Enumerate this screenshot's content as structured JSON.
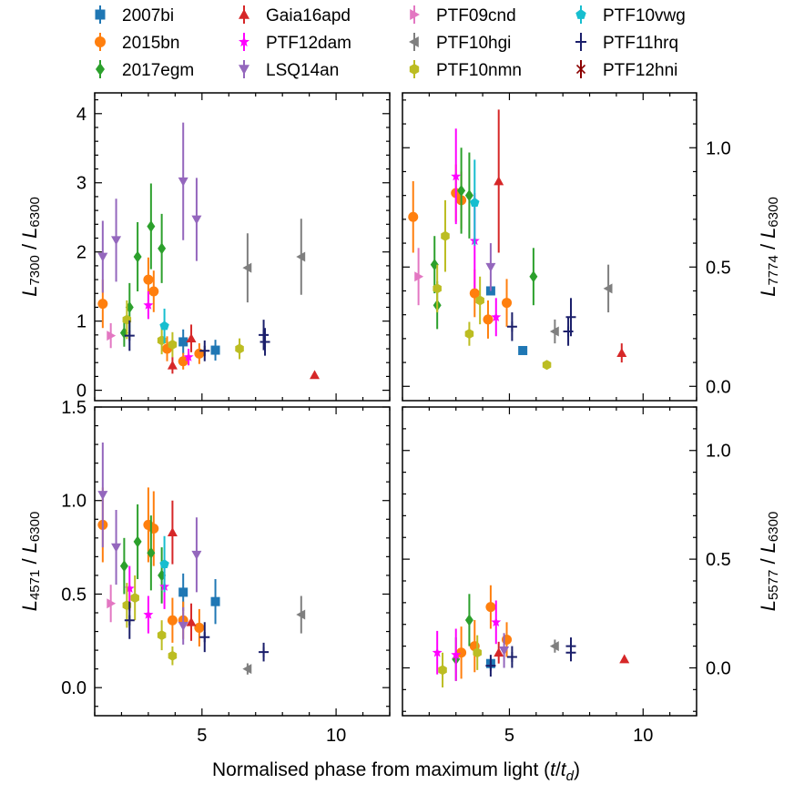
{
  "chart_data": {
    "type": "scatter",
    "xlabel": "Normalised phase from maximum light (t/t_d)",
    "xlabel_parts": {
      "prefix": "Normalised phase from maximum light (",
      "t": "t",
      "slash": "/",
      "td": "t",
      "td_sub": "d",
      "suffix": ")"
    },
    "xlim": [
      1,
      12
    ],
    "xticks": [
      5,
      10
    ],
    "legend": [
      {
        "name": "2007bi",
        "color": "#1f77b4",
        "marker": "square"
      },
      {
        "name": "2015bn",
        "color": "#ff7f0e",
        "marker": "circle"
      },
      {
        "name": "2017egm",
        "color": "#2ca02c",
        "marker": "diamond"
      },
      {
        "name": "Gaia16apd",
        "color": "#d62728",
        "marker": "triangle-up"
      },
      {
        "name": "PTF12dam",
        "color": "#ff00ff",
        "marker": "star"
      },
      {
        "name": "LSQ14an",
        "color": "#9467bd",
        "marker": "triangle-down"
      },
      {
        "name": "PTF09cnd",
        "color": "#e377c2",
        "marker": "triangle-right"
      },
      {
        "name": "PTF10hgi",
        "color": "#7f7f7f",
        "marker": "triangle-left"
      },
      {
        "name": "PTF10nmn",
        "color": "#bcbd22",
        "marker": "hexagon"
      },
      {
        "name": "PTF10vwg",
        "color": "#17becf",
        "marker": "pentagon"
      },
      {
        "name": "PTF11hrq",
        "color": "#1b1f6b",
        "marker": "plus"
      },
      {
        "name": "PTF12hni",
        "color": "#8b0000",
        "marker": "x"
      }
    ],
    "panels": [
      {
        "id": "top-left",
        "ylabel": {
          "main": "L",
          "sub": "7300",
          "den": "L",
          "den_sub": "6300"
        },
        "ylabel_side": "left",
        "ylim": [
          -0.15,
          4.3
        ],
        "yticks": [
          0,
          1,
          2,
          3,
          4
        ],
        "show_xticklabels": false,
        "points": [
          {
            "s": "2007bi",
            "x": 4.3,
            "y": 0.7,
            "err": 0.18
          },
          {
            "s": "2007bi",
            "x": 5.5,
            "y": 0.58,
            "err": 0.15
          },
          {
            "s": "2015bn",
            "x": 1.3,
            "y": 1.25,
            "err": 0.35
          },
          {
            "s": "2015bn",
            "x": 3.0,
            "y": 1.6,
            "err": 0.32
          },
          {
            "s": "2015bn",
            "x": 3.2,
            "y": 1.43,
            "err": 0.3
          },
          {
            "s": "2015bn",
            "x": 3.7,
            "y": 0.6,
            "err": 0.18
          },
          {
            "s": "2015bn",
            "x": 4.3,
            "y": 0.42,
            "err": 0.12
          },
          {
            "s": "2015bn",
            "x": 4.9,
            "y": 0.53,
            "err": 0.15
          },
          {
            "s": "2017egm",
            "x": 2.1,
            "y": 0.83,
            "err": 0.2
          },
          {
            "s": "2017egm",
            "x": 2.3,
            "y": 1.2,
            "err": 0.35
          },
          {
            "s": "2017egm",
            "x": 2.6,
            "y": 1.93,
            "err": 0.5
          },
          {
            "s": "2017egm",
            "x": 3.1,
            "y": 2.37,
            "err": 0.62
          },
          {
            "s": "2017egm",
            "x": 3.5,
            "y": 2.05,
            "err": 0.5
          },
          {
            "s": "Gaia16apd",
            "x": 3.9,
            "y": 0.36,
            "err": 0.12
          },
          {
            "s": "Gaia16apd",
            "x": 4.6,
            "y": 0.75,
            "err": 0.2
          },
          {
            "s": "Gaia16apd",
            "x": 9.2,
            "y": 0.22,
            "err": 0.0
          },
          {
            "s": "PTF12dam",
            "x": 3.0,
            "y": 1.23,
            "err": 0.2
          },
          {
            "s": "PTF12dam",
            "x": 4.5,
            "y": 0.48,
            "err": 0.12
          },
          {
            "s": "LSQ14an",
            "x": 1.3,
            "y": 1.93,
            "err": 0.52
          },
          {
            "s": "LSQ14an",
            "x": 1.8,
            "y": 2.17,
            "err": 0.6
          },
          {
            "s": "LSQ14an",
            "x": 4.3,
            "y": 3.02,
            "err": 0.85
          },
          {
            "s": "LSQ14an",
            "x": 4.8,
            "y": 2.47,
            "err": 0.6
          },
          {
            "s": "PTF09cnd",
            "x": 1.6,
            "y": 0.79,
            "err": 0.18
          },
          {
            "s": "PTF10hgi",
            "x": 6.7,
            "y": 1.77,
            "err": 0.5
          },
          {
            "s": "PTF10hgi",
            "x": 8.7,
            "y": 1.93,
            "err": 0.55
          },
          {
            "s": "PTF10nmn",
            "x": 2.2,
            "y": 1.02,
            "err": 0.28
          },
          {
            "s": "PTF10nmn",
            "x": 3.5,
            "y": 0.72,
            "err": 0.2
          },
          {
            "s": "PTF10nmn",
            "x": 3.9,
            "y": 0.66,
            "err": 0.18
          },
          {
            "s": "PTF10nmn",
            "x": 6.4,
            "y": 0.6,
            "err": 0.15
          },
          {
            "s": "PTF10vwg",
            "x": 3.6,
            "y": 0.93,
            "err": 0.25
          },
          {
            "s": "PTF11hrq",
            "x": 2.3,
            "y": 0.79,
            "err": 0.22
          },
          {
            "s": "PTF11hrq",
            "x": 5.1,
            "y": 0.57,
            "err": 0.15
          },
          {
            "s": "PTF11hrq",
            "x": 7.3,
            "y": 0.8,
            "err": 0.22
          },
          {
            "s": "PTF11hrq",
            "x": 7.35,
            "y": 0.7,
            "err": 0.2
          }
        ]
      },
      {
        "id": "top-right",
        "ylabel": {
          "main": "L",
          "sub": "7774",
          "den": "L",
          "den_sub": "6300"
        },
        "ylabel_side": "right",
        "ylim": [
          -0.06,
          1.23
        ],
        "yticks": [
          0.0,
          0.5,
          1.0
        ],
        "ytick_labels": [
          "0.0",
          "0.5",
          "1.0"
        ],
        "show_xticklabels": false,
        "points": [
          {
            "s": "2007bi",
            "x": 4.3,
            "y": 0.4,
            "err": 0.0
          },
          {
            "s": "2007bi",
            "x": 5.5,
            "y": 0.15,
            "err": 0.0
          },
          {
            "s": "2015bn",
            "x": 1.4,
            "y": 0.71,
            "err": 0.15
          },
          {
            "s": "2015bn",
            "x": 3.0,
            "y": 0.81,
            "err": 0.12
          },
          {
            "s": "2015bn",
            "x": 3.2,
            "y": 0.78,
            "err": 0.12
          },
          {
            "s": "2015bn",
            "x": 3.7,
            "y": 0.39,
            "err": 0.1
          },
          {
            "s": "2015bn",
            "x": 4.2,
            "y": 0.28,
            "err": 0.08
          },
          {
            "s": "2015bn",
            "x": 4.9,
            "y": 0.35,
            "err": 0.1
          },
          {
            "s": "2017egm",
            "x": 2.2,
            "y": 0.51,
            "err": 0.12
          },
          {
            "s": "2017egm",
            "x": 2.3,
            "y": 0.34,
            "err": 0.1
          },
          {
            "s": "2017egm",
            "x": 3.2,
            "y": 0.82,
            "err": 0.18
          },
          {
            "s": "2017egm",
            "x": 3.5,
            "y": 0.8,
            "err": 0.18
          },
          {
            "s": "2017egm",
            "x": 5.9,
            "y": 0.46,
            "err": 0.12
          },
          {
            "s": "Gaia16apd",
            "x": 4.6,
            "y": 0.86,
            "err": 0.3
          },
          {
            "s": "Gaia16apd",
            "x": 9.2,
            "y": 0.14,
            "err": 0.04
          },
          {
            "s": "PTF12dam",
            "x": 3.0,
            "y": 0.88,
            "err": 0.2
          },
          {
            "s": "PTF12dam",
            "x": 3.7,
            "y": 0.61,
            "err": 0.2
          },
          {
            "s": "PTF12dam",
            "x": 4.5,
            "y": 0.29,
            "err": 0.08
          },
          {
            "s": "LSQ14an",
            "x": 4.3,
            "y": 0.5,
            "err": 0.1
          },
          {
            "s": "PTF09cnd",
            "x": 1.6,
            "y": 0.46,
            "err": 0.12
          },
          {
            "s": "PTF10hgi",
            "x": 6.7,
            "y": 0.23,
            "err": 0.05
          },
          {
            "s": "PTF10hgi",
            "x": 8.7,
            "y": 0.41,
            "err": 0.1
          },
          {
            "s": "PTF10nmn",
            "x": 2.3,
            "y": 0.41,
            "err": 0.1
          },
          {
            "s": "PTF10nmn",
            "x": 2.6,
            "y": 0.63,
            "err": 0.15
          },
          {
            "s": "PTF10nmn",
            "x": 3.5,
            "y": 0.22,
            "err": 0.05
          },
          {
            "s": "PTF10nmn",
            "x": 3.9,
            "y": 0.36,
            "err": 0.1
          },
          {
            "s": "PTF10nmn",
            "x": 6.4,
            "y": 0.09,
            "err": 0.0
          },
          {
            "s": "PTF10vwg",
            "x": 3.7,
            "y": 0.77,
            "err": 0.18
          },
          {
            "s": "PTF11hrq",
            "x": 5.1,
            "y": 0.25,
            "err": 0.06
          },
          {
            "s": "PTF11hrq",
            "x": 7.2,
            "y": 0.23,
            "err": 0.06
          },
          {
            "s": "PTF11hrq",
            "x": 7.3,
            "y": 0.29,
            "err": 0.08
          }
        ]
      },
      {
        "id": "bottom-left",
        "ylabel": {
          "main": "L",
          "sub": "4571",
          "den": "L",
          "den_sub": "6300"
        },
        "ylabel_side": "left",
        "ylim": [
          -0.15,
          1.5
        ],
        "yticks": [
          0.0,
          0.5,
          1.0,
          1.5
        ],
        "ytick_labels": [
          "0.0",
          "0.5",
          "1.0",
          "1.5"
        ],
        "show_xticklabels": true,
        "points": [
          {
            "s": "2007bi",
            "x": 4.3,
            "y": 0.51,
            "err": 0.1
          },
          {
            "s": "2007bi",
            "x": 5.5,
            "y": 0.46,
            "err": 0.12
          },
          {
            "s": "2015bn",
            "x": 1.3,
            "y": 0.87,
            "err": 0.2
          },
          {
            "s": "2015bn",
            "x": 3.0,
            "y": 0.87,
            "err": 0.2
          },
          {
            "s": "2015bn",
            "x": 3.2,
            "y": 0.85,
            "err": 0.2
          },
          {
            "s": "2015bn",
            "x": 3.9,
            "y": 0.36,
            "err": 0.12
          },
          {
            "s": "2015bn",
            "x": 4.3,
            "y": 0.36,
            "err": 0.1
          },
          {
            "s": "2015bn",
            "x": 4.9,
            "y": 0.32,
            "err": 0.1
          },
          {
            "s": "2017egm",
            "x": 2.1,
            "y": 0.65,
            "err": 0.15
          },
          {
            "s": "2017egm",
            "x": 2.6,
            "y": 0.78,
            "err": 0.2
          },
          {
            "s": "2017egm",
            "x": 3.1,
            "y": 0.72,
            "err": 0.2
          },
          {
            "s": "2017egm",
            "x": 3.5,
            "y": 0.6,
            "err": 0.15
          },
          {
            "s": "Gaia16apd",
            "x": 3.9,
            "y": 0.83,
            "err": 0.17
          },
          {
            "s": "Gaia16apd",
            "x": 4.6,
            "y": 0.35,
            "err": 0.1
          },
          {
            "s": "PTF12dam",
            "x": 2.3,
            "y": 0.53,
            "err": 0.12
          },
          {
            "s": "PTF12dam",
            "x": 3.0,
            "y": 0.39,
            "err": 0.1
          },
          {
            "s": "PTF12dam",
            "x": 3.6,
            "y": 0.54,
            "err": 0.12
          },
          {
            "s": "LSQ14an",
            "x": 1.3,
            "y": 1.03,
            "err": 0.28
          },
          {
            "s": "LSQ14an",
            "x": 1.8,
            "y": 0.75,
            "err": 0.2
          },
          {
            "s": "LSQ14an",
            "x": 4.3,
            "y": 0.33,
            "err": 0.1
          },
          {
            "s": "LSQ14an",
            "x": 4.8,
            "y": 0.71,
            "err": 0.2
          },
          {
            "s": "PTF09cnd",
            "x": 1.6,
            "y": 0.45,
            "err": 0.1
          },
          {
            "s": "PTF10hgi",
            "x": 6.7,
            "y": 0.1,
            "err": 0.03
          },
          {
            "s": "PTF10hgi",
            "x": 8.7,
            "y": 0.39,
            "err": 0.1
          },
          {
            "s": "PTF10nmn",
            "x": 2.2,
            "y": 0.44,
            "err": 0.12
          },
          {
            "s": "PTF10nmn",
            "x": 2.5,
            "y": 0.48,
            "err": 0.12
          },
          {
            "s": "PTF10nmn",
            "x": 3.5,
            "y": 0.28,
            "err": 0.08
          },
          {
            "s": "PTF10nmn",
            "x": 3.9,
            "y": 0.17,
            "err": 0.05
          },
          {
            "s": "PTF10vwg",
            "x": 3.6,
            "y": 0.66,
            "err": 0.15
          },
          {
            "s": "PTF11hrq",
            "x": 2.3,
            "y": 0.36,
            "err": 0.1
          },
          {
            "s": "PTF11hrq",
            "x": 5.1,
            "y": 0.27,
            "err": 0.08
          },
          {
            "s": "PTF11hrq",
            "x": 7.3,
            "y": 0.19,
            "err": 0.05
          }
        ]
      },
      {
        "id": "bottom-right",
        "ylabel": {
          "main": "L",
          "sub": "5577",
          "den": "L",
          "den_sub": "6300"
        },
        "ylabel_side": "right",
        "ylim": [
          -0.22,
          1.2
        ],
        "yticks": [
          0.0,
          0.5,
          1.0
        ],
        "ytick_labels": [
          "0.0",
          "0.5",
          "1.0"
        ],
        "show_xticklabels": true,
        "points": [
          {
            "s": "2007bi",
            "x": 4.3,
            "y": 0.02,
            "err": 0.0
          },
          {
            "s": "2015bn",
            "x": 3.2,
            "y": 0.07,
            "err": 0.12
          },
          {
            "s": "2015bn",
            "x": 3.7,
            "y": 0.1,
            "err": 0.12
          },
          {
            "s": "2015bn",
            "x": 4.3,
            "y": 0.28,
            "err": 0.1
          },
          {
            "s": "2015bn",
            "x": 4.9,
            "y": 0.13,
            "err": 0.08
          },
          {
            "s": "2017egm",
            "x": 3.0,
            "y": 0.04,
            "err": 0.1
          },
          {
            "s": "2017egm",
            "x": 3.5,
            "y": 0.22,
            "err": 0.12
          },
          {
            "s": "Gaia16apd",
            "x": 4.6,
            "y": 0.07,
            "err": 0.05
          },
          {
            "s": "Gaia16apd",
            "x": 9.3,
            "y": 0.04,
            "err": 0.0
          },
          {
            "s": "PTF12dam",
            "x": 2.3,
            "y": 0.07,
            "err": 0.1
          },
          {
            "s": "PTF12dam",
            "x": 3.0,
            "y": 0.06,
            "err": 0.12
          },
          {
            "s": "PTF12dam",
            "x": 4.5,
            "y": 0.21,
            "err": 0.1
          },
          {
            "s": "LSQ14an",
            "x": 4.8,
            "y": 0.08,
            "err": 0.08
          },
          {
            "s": "PTF10hgi",
            "x": 6.7,
            "y": 0.1,
            "err": 0.03
          },
          {
            "s": "PTF10nmn",
            "x": 2.5,
            "y": -0.01,
            "err": 0.08
          },
          {
            "s": "PTF10nmn",
            "x": 3.8,
            "y": 0.07,
            "err": 0.08
          },
          {
            "s": "PTF11hrq",
            "x": 4.3,
            "y": 0.01,
            "err": 0.05
          },
          {
            "s": "PTF11hrq",
            "x": 5.1,
            "y": 0.05,
            "err": 0.05
          },
          {
            "s": "PTF11hrq",
            "x": 7.3,
            "y": 0.1,
            "err": 0.04
          },
          {
            "s": "PTF11hrq",
            "x": 7.3,
            "y": 0.07,
            "err": 0.04
          }
        ]
      }
    ]
  }
}
